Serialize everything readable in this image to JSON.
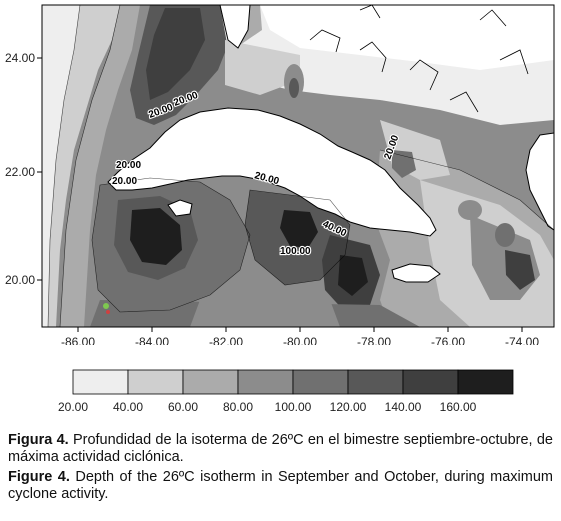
{
  "map": {
    "x_ticks": [
      "-86.00",
      "-84.00",
      "-82.00",
      "-80.00",
      "-78.00",
      "-76.00",
      "-74.00"
    ],
    "y_ticks": [
      "24.00",
      "22.00",
      "20.00"
    ],
    "contour_labels": [
      "20.00",
      "20.00",
      "20.00",
      "20.00",
      "20.00",
      "20.00",
      "40.00",
      "100.00"
    ]
  },
  "legend": {
    "colors": [
      "#eeeeee",
      "#cfcfcf",
      "#ababab",
      "#8c8c8c",
      "#707070",
      "#585858",
      "#3f3f3f",
      "#1e1e1e"
    ],
    "ticks": [
      "20.00",
      "40.00",
      "60.00",
      "80.00",
      "100.00",
      "120.00",
      "140.00",
      "160.00"
    ]
  },
  "caption": {
    "es_label": "Figura 4.",
    "es_text": "Profundidad de la isoterma de 26ºC en el bimestre septiembre-octubre, de máxima actividad ciclónica.",
    "en_label": "Figure 4.",
    "en_text": "Depth of the 26ºC isotherm in September and October, during maximum cyclone activity."
  }
}
